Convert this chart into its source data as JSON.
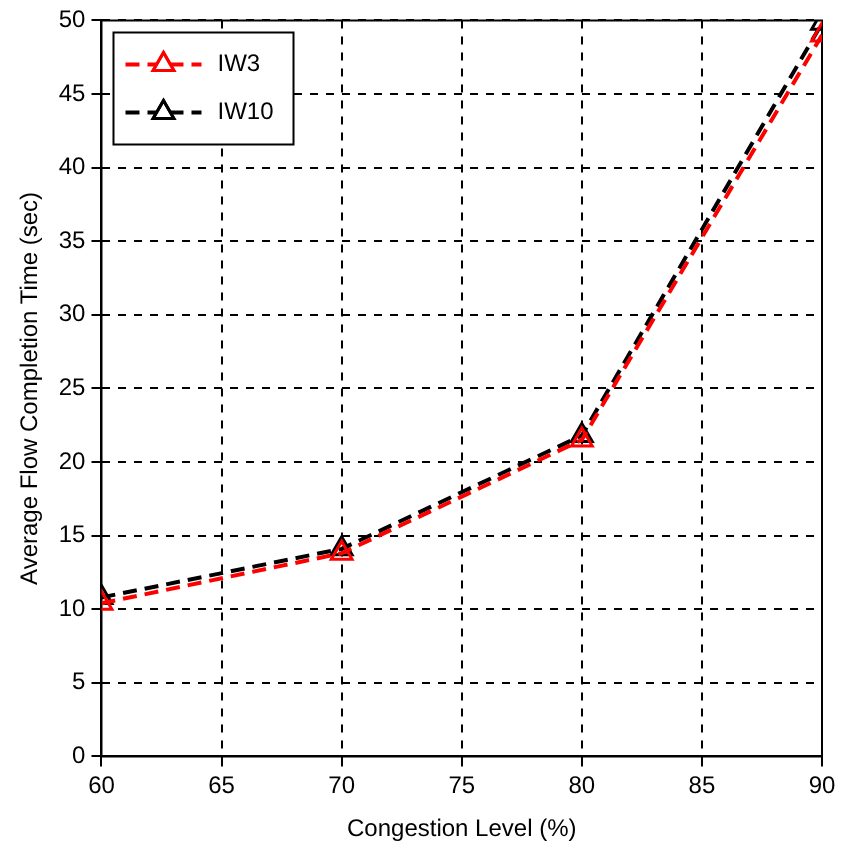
{
  "chart_data": {
    "type": "line",
    "xlabel": "Congestion Level (%)",
    "ylabel": "Average Flow Completion Time (sec)",
    "x": [
      60,
      70,
      80,
      90
    ],
    "series": [
      {
        "name": "IW3",
        "color": "#ff0000",
        "values": [
          10.4,
          13.8,
          21.5,
          49.0
        ],
        "marker": "triangle",
        "line_style": "dashed"
      },
      {
        "name": "IW10",
        "color": "#000000",
        "values": [
          10.8,
          14.1,
          21.8,
          49.8
        ],
        "marker": "triangle",
        "line_style": "dashed"
      }
    ],
    "xlim": [
      60,
      90
    ],
    "xticks": [
      60,
      65,
      70,
      75,
      80,
      85,
      90
    ],
    "ylim": [
      0,
      50
    ],
    "yticks": [
      0,
      5,
      10,
      15,
      20,
      25,
      30,
      35,
      40,
      45,
      50
    ],
    "grid": true,
    "legend": "top left"
  }
}
